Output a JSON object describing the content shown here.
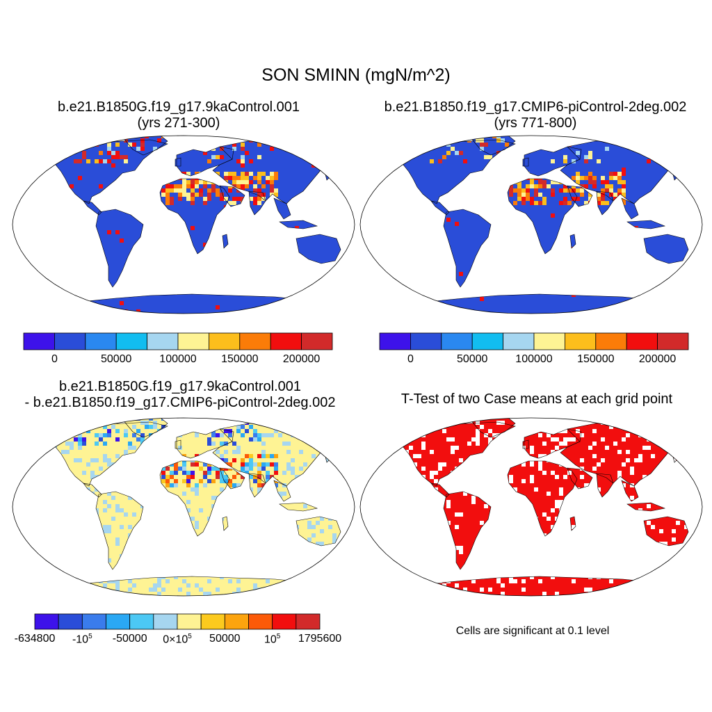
{
  "figure": {
    "title": "SON SMINN (mgN/m^2)",
    "panels": [
      {
        "title_line1": "b.e21.B1850G.f19_g17.9kaControl.001",
        "title_line2": "(yrs 271-300)"
      },
      {
        "title_line1": "b.e21.B1850.f19_g17.CMIP6-piControl-2deg.002",
        "title_line2": "(yrs 771-800)"
      },
      {
        "title_line1": "b.e21.B1850G.f19_g17.9kaControl.001",
        "title_line2": "- b.e21.B1850.f19_g17.CMIP6-piControl-2deg.002"
      },
      {
        "title_line1": "T-Test of two Case means at each grid point"
      }
    ],
    "significance_note": "Cells are significant at 0.1 level"
  },
  "colorbars": {
    "case": {
      "colors": [
        "#3d12ea",
        "#2a4dd8",
        "#2a88f0",
        "#12bdf0",
        "#a6d6f0",
        "#fef394",
        "#fcbe1c",
        "#fb7c08",
        "#f20e0e",
        "#d22a2a"
      ],
      "labels": [
        "0",
        "50000",
        "100000",
        "150000",
        "200000"
      ]
    },
    "diff": {
      "colors": [
        "#3d12ea",
        "#2a4dd8",
        "#3a7cec",
        "#2aa8f4",
        "#4cc8f4",
        "#a6d6f0",
        "#fef394",
        "#fcca1e",
        "#fca40e",
        "#fc5a08",
        "#f20e0e",
        "#d22a2a"
      ],
      "labels": [
        "-634800",
        "-10^5",
        "-50000",
        "0×10^5",
        "50000",
        "10^5",
        "1795600"
      ]
    }
  },
  "map_colors": {
    "land_case": "#2a4dd8",
    "land_diff": "#fef394",
    "significant": "#f20e0e",
    "ocean": "#ffffff",
    "coast": "#000000"
  }
}
